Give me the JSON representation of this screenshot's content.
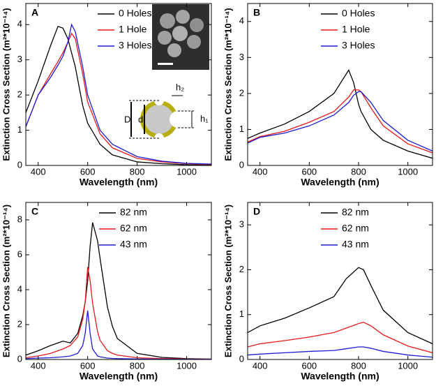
{
  "chart_data": [
    {
      "type": "line",
      "title": "A",
      "x_label": "Wavelength (nm)",
      "y_label": "Extinction Cross Section (m²*10⁻¹⁴)",
      "annotations": [
        "D",
        "d",
        "h₁",
        "h₂"
      ],
      "x": [
        350,
        400,
        450,
        480,
        500,
        520,
        535,
        550,
        580,
        600,
        650,
        700,
        800,
        900,
        1000,
        1100
      ],
      "series": [
        {
          "name": "0 Holes",
          "color": "#000000",
          "values": [
            1.5,
            2.4,
            3.4,
            3.95,
            3.9,
            3.6,
            3.2,
            2.8,
            1.7,
            1.2,
            0.6,
            0.3,
            0.1,
            0.05,
            0.02,
            0.01
          ]
        },
        {
          "name": "1 Hole",
          "color": "#e8191b",
          "values": [
            1.1,
            2.0,
            2.6,
            2.95,
            3.2,
            3.5,
            3.75,
            3.6,
            2.6,
            1.8,
            0.9,
            0.5,
            0.2,
            0.1,
            0.05,
            0.03
          ]
        },
        {
          "name": "3 Holes",
          "color": "#1c1cd6",
          "values": [
            1.1,
            2.0,
            2.5,
            2.85,
            3.1,
            3.5,
            4.0,
            3.8,
            2.8,
            2.0,
            1.0,
            0.6,
            0.25,
            0.12,
            0.06,
            0.04
          ]
        }
      ],
      "xlim": [
        350,
        1100
      ],
      "xticks": [
        400,
        600,
        800,
        1000
      ],
      "ylim": [
        0,
        4.6
      ],
      "yticks": [
        0,
        1,
        2,
        3,
        4
      ]
    },
    {
      "type": "line",
      "title": "B",
      "x_label": "Wavelength (nm)",
      "y_label": "Extinction Cross Section (m²*10⁻¹⁴)",
      "x": [
        350,
        400,
        500,
        600,
        700,
        760,
        780,
        800,
        810,
        850,
        900,
        1000,
        1100
      ],
      "series": [
        {
          "name": "0 Holes",
          "color": "#000000",
          "values": [
            0.75,
            0.9,
            1.15,
            1.5,
            2.0,
            2.65,
            2.3,
            1.7,
            1.5,
            1.0,
            0.7,
            0.4,
            0.2
          ]
        },
        {
          "name": "1 Hole",
          "color": "#e8191b",
          "values": [
            0.65,
            0.8,
            0.95,
            1.2,
            1.5,
            1.9,
            2.1,
            2.1,
            2.05,
            1.6,
            1.1,
            0.6,
            0.35
          ]
        },
        {
          "name": "3 Holes",
          "color": "#1c1cd6",
          "values": [
            0.62,
            0.78,
            0.9,
            1.1,
            1.4,
            1.75,
            1.95,
            2.05,
            2.05,
            1.75,
            1.25,
            0.7,
            0.4
          ]
        }
      ],
      "xlim": [
        350,
        1100
      ],
      "xticks": [
        400,
        600,
        800,
        1000
      ],
      "ylim": [
        0,
        4.5
      ],
      "yticks": [
        0,
        1,
        2,
        3,
        4
      ]
    },
    {
      "type": "line",
      "title": "C",
      "x_label": "Wavelength (nm)",
      "y_label": "Extinction Cross Section (m²*10⁻¹⁴)",
      "x": [
        350,
        400,
        450,
        500,
        530,
        560,
        580,
        590,
        600,
        610,
        620,
        640,
        650,
        680,
        700,
        720,
        800,
        900,
        1000,
        1100
      ],
      "series": [
        {
          "name": "82 nm",
          "color": "#000000",
          "values": [
            0.25,
            0.5,
            0.8,
            1.05,
            0.95,
            1.5,
            2.5,
            3.3,
            4.5,
            6.5,
            7.85,
            6.8,
            5.8,
            3.0,
            1.9,
            1.2,
            0.35,
            0.12,
            0.05,
            0.02
          ]
        },
        {
          "name": "62 nm",
          "color": "#e8191b",
          "values": [
            0.1,
            0.2,
            0.35,
            0.6,
            0.8,
            1.3,
            2.3,
            3.3,
            5.3,
            4.5,
            3.2,
            1.6,
            1.1,
            0.5,
            0.35,
            0.25,
            0.1,
            0.05,
            0.03,
            0.02
          ]
        },
        {
          "name": "43 nm",
          "color": "#1c1cd6",
          "values": [
            0.05,
            0.08,
            0.1,
            0.15,
            0.2,
            0.35,
            0.8,
            1.5,
            2.8,
            1.5,
            0.6,
            0.2,
            0.15,
            0.08,
            0.06,
            0.05,
            0.03,
            0.02,
            0.01,
            0.01
          ]
        }
      ],
      "xlim": [
        350,
        1100
      ],
      "xticks": [
        400,
        600,
        800,
        1000
      ],
      "ylim": [
        0,
        9
      ],
      "yticks": [
        0,
        2,
        4,
        6,
        8
      ]
    },
    {
      "type": "line",
      "title": "D",
      "x_label": "Wavelength (nm)",
      "y_label": "Extinction Cross Section (m²*10⁻¹⁴)",
      "x": [
        350,
        400,
        500,
        600,
        700,
        750,
        800,
        820,
        850,
        900,
        1000,
        1100
      ],
      "series": [
        {
          "name": "82 nm",
          "color": "#000000",
          "values": [
            0.6,
            0.75,
            0.92,
            1.15,
            1.4,
            1.8,
            2.05,
            2.0,
            1.65,
            1.1,
            0.6,
            0.35
          ]
        },
        {
          "name": "62 nm",
          "color": "#e8191b",
          "values": [
            0.28,
            0.35,
            0.42,
            0.5,
            0.6,
            0.7,
            0.8,
            0.83,
            0.75,
            0.55,
            0.3,
            0.15
          ]
        },
        {
          "name": "43 nm",
          "color": "#1c1cd6",
          "values": [
            0.1,
            0.12,
            0.15,
            0.18,
            0.2,
            0.24,
            0.28,
            0.28,
            0.25,
            0.18,
            0.1,
            0.05
          ]
        }
      ],
      "xlim": [
        350,
        1100
      ],
      "xticks": [
        400,
        600,
        800,
        1000
      ],
      "ylim": [
        0,
        3.5
      ],
      "yticks": [
        0,
        1,
        2,
        3
      ]
    }
  ]
}
